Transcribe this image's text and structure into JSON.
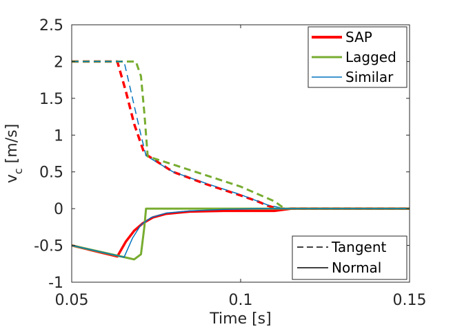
{
  "chart_data": {
    "type": "line",
    "title": "",
    "xlabel": "Time [s]",
    "ylabel_main": "v",
    "ylabel_sub": "c",
    "ylabel_unit": " [m/s]",
    "xlim": [
      0.05,
      0.15
    ],
    "ylim": [
      -1,
      2.5
    ],
    "x_ticks": [
      0.05,
      0.1,
      0.15
    ],
    "x_tick_labels": [
      "0.05",
      "0.1",
      "0.15"
    ],
    "y_ticks": [
      -1,
      -0.5,
      0,
      0.5,
      1,
      1.5,
      2,
      2.5
    ],
    "y_tick_labels": [
      "-1",
      "-0.5",
      "0",
      "0.5",
      "1",
      "1.5",
      "2",
      "2.5"
    ],
    "grid": false,
    "legend_methods": {
      "placement": "top-right",
      "entries": [
        {
          "label": "SAP",
          "color": "#ff0000"
        },
        {
          "label": "Lagged",
          "color": "#77ac30"
        },
        {
          "label": "Similar",
          "color": "#0072bd"
        }
      ]
    },
    "legend_styles": {
      "placement": "bottom-right",
      "entries": [
        {
          "label": "Tangent",
          "dash": "dashed"
        },
        {
          "label": "Normal",
          "dash": "solid"
        }
      ]
    },
    "series": [
      {
        "method": "SAP",
        "component": "Tangent",
        "color": "#ff0000",
        "dash": "dashed",
        "width": 3.5,
        "x": [
          0.05,
          0.0635,
          0.066,
          0.0685,
          0.0715,
          0.08,
          0.09,
          0.1,
          0.105,
          0.108,
          0.111,
          0.12,
          0.15
        ],
        "y": [
          2.0,
          2.0,
          1.6,
          1.15,
          0.75,
          0.5,
          0.33,
          0.18,
          0.1,
          0.04,
          0.0,
          0.0,
          0.0
        ]
      },
      {
        "method": "Lagged",
        "component": "Tangent",
        "color": "#77ac30",
        "dash": "dashed",
        "width": 3,
        "x": [
          0.05,
          0.069,
          0.0705,
          0.0715,
          0.0725,
          0.08,
          0.09,
          0.1,
          0.105,
          0.11,
          0.113,
          0.12,
          0.15
        ],
        "y": [
          2.0,
          2.0,
          1.8,
          1.3,
          0.71,
          0.6,
          0.45,
          0.3,
          0.2,
          0.1,
          0.0,
          0.0,
          0.0
        ]
      },
      {
        "method": "Similar",
        "component": "Tangent",
        "color": "#0072bd",
        "dash": "dashed",
        "width": 1.5,
        "x": [
          0.05,
          0.0655,
          0.068,
          0.0705,
          0.072,
          0.08,
          0.09,
          0.1,
          0.108,
          0.113,
          0.12,
          0.15
        ],
        "y": [
          2.0,
          2.0,
          1.5,
          1.0,
          0.72,
          0.5,
          0.34,
          0.19,
          0.05,
          0.0,
          0.0,
          0.0
        ]
      },
      {
        "method": "SAP",
        "component": "Normal",
        "color": "#ff0000",
        "dash": "solid",
        "width": 3.5,
        "x": [
          0.05,
          0.0635,
          0.066,
          0.0685,
          0.071,
          0.074,
          0.078,
          0.085,
          0.095,
          0.11,
          0.115,
          0.15
        ],
        "y": [
          -0.5,
          -0.65,
          -0.45,
          -0.3,
          -0.2,
          -0.12,
          -0.07,
          -0.04,
          -0.03,
          -0.03,
          0.0,
          0.0
        ]
      },
      {
        "method": "Lagged",
        "component": "Normal",
        "color": "#77ac30",
        "dash": "solid",
        "width": 3,
        "x": [
          0.05,
          0.0685,
          0.0705,
          0.0715,
          0.072,
          0.08,
          0.1,
          0.15
        ],
        "y": [
          -0.5,
          -0.69,
          -0.62,
          -0.25,
          0.0,
          0.0,
          0.0,
          0.0
        ]
      },
      {
        "method": "Similar",
        "component": "Normal",
        "color": "#0072bd",
        "dash": "solid",
        "width": 1.5,
        "x": [
          0.05,
          0.0655,
          0.068,
          0.0705,
          0.0735,
          0.078,
          0.085,
          0.095,
          0.105,
          0.115,
          0.15
        ],
        "y": [
          -0.5,
          -0.66,
          -0.4,
          -0.22,
          -0.12,
          -0.06,
          -0.03,
          -0.01,
          0.0,
          0.0,
          0.0
        ]
      }
    ]
  }
}
